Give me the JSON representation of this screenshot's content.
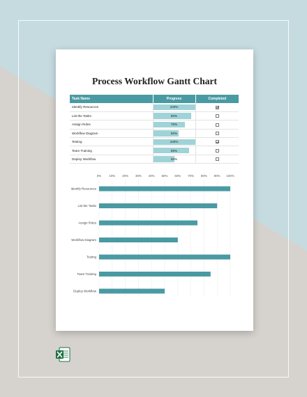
{
  "document": {
    "title": "Process Workflow Gantt Chart",
    "columns": {
      "task": "Task Name",
      "progress": "Progress",
      "completed": "Completed"
    },
    "rows": [
      {
        "task": "Identify Resources",
        "progress": 100,
        "progress_label": "100%",
        "completed": true
      },
      {
        "task": "List the Tasks",
        "progress": 90,
        "progress_label": "90%",
        "completed": false
      },
      {
        "task": "Assign Roles",
        "progress": 75,
        "progress_label": "75%",
        "completed": false
      },
      {
        "task": "Workflow Diagram",
        "progress": 60,
        "progress_label": "60%",
        "completed": false
      },
      {
        "task": "Testing",
        "progress": 100,
        "progress_label": "100%",
        "completed": true
      },
      {
        "task": "Team Training",
        "progress": 85,
        "progress_label": "85%",
        "completed": false
      },
      {
        "task": "Deploy Workflow",
        "progress": 50,
        "progress_label": "50%",
        "completed": false
      }
    ]
  },
  "chart_data": {
    "type": "bar",
    "orientation": "horizontal",
    "categories": [
      "Identify Resources",
      "List the Tasks",
      "Assign Roles",
      "Workflow Diagram",
      "Testing",
      "Team Training",
      "Deploy Workflow"
    ],
    "values": [
      100,
      90,
      75,
      60,
      100,
      85,
      50
    ],
    "xlim": [
      0,
      100
    ],
    "x_ticks": [
      "0%",
      "10%",
      "20%",
      "30%",
      "40%",
      "50%",
      "60%",
      "70%",
      "80%",
      "90%",
      "100%"
    ],
    "grid": true,
    "bar_color": "#4a9aa3"
  },
  "colors": {
    "accent": "#4a9aa3",
    "progress_fill": "#9fd3d7",
    "background_blue": "#c5dbe0",
    "background_gray": "#d6d2ce",
    "excel_green": "#1e7145"
  },
  "icons": {
    "app": "excel-icon"
  }
}
